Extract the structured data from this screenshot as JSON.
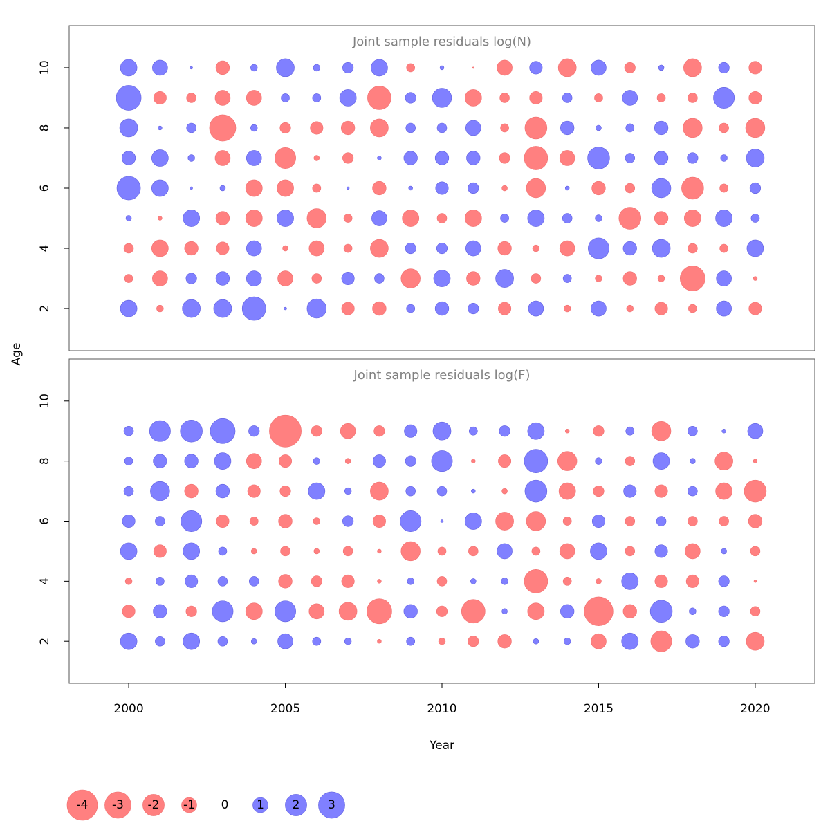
{
  "chart_data": [
    {
      "type": "bubble",
      "title": "Joint sample residuals log(N)",
      "x": [
        2000,
        2001,
        2002,
        2003,
        2004,
        2005,
        2006,
        2007,
        2008,
        2009,
        2010,
        2011,
        2012,
        2013,
        2014,
        2015,
        2016,
        2017,
        2018,
        2019,
        2020
      ],
      "ages": [
        10,
        9,
        8,
        7,
        6,
        5,
        4,
        3,
        2
      ],
      "values": [
        [
          1.2,
          1.0,
          0.03,
          -0.8,
          0.2,
          1.4,
          0.2,
          0.5,
          1.2,
          -0.3,
          0.07,
          -0.01,
          -1.0,
          0.7,
          -1.4,
          1.0,
          -0.5,
          0.13,
          -1.4,
          0.5,
          -0.7
        ],
        [
          2.7,
          -0.7,
          -0.4,
          -1.0,
          -1.0,
          0.3,
          0.3,
          1.2,
          -2.4,
          0.5,
          1.6,
          -1.2,
          -0.4,
          -0.7,
          0.4,
          -0.3,
          1.0,
          -0.3,
          -0.4,
          1.9,
          -0.7
        ],
        [
          1.4,
          0.07,
          0.4,
          -3.0,
          0.2,
          -0.5,
          -0.7,
          -0.8,
          -1.4,
          0.4,
          0.4,
          1.0,
          -0.3,
          -2.1,
          0.8,
          0.13,
          0.3,
          0.8,
          -1.6,
          -0.4,
          -1.6
        ],
        [
          0.8,
          1.2,
          0.2,
          -1.0,
          1.0,
          -1.9,
          -0.13,
          -0.5,
          0.07,
          0.8,
          0.8,
          0.8,
          -0.5,
          -2.4,
          -1.0,
          2.1,
          0.4,
          0.8,
          0.5,
          0.2,
          1.4
        ],
        [
          2.4,
          1.2,
          0.03,
          0.13,
          -1.2,
          -1.2,
          -0.3,
          0.03,
          -0.8,
          0.07,
          0.7,
          0.5,
          -0.13,
          -1.6,
          0.07,
          -0.8,
          -0.4,
          1.6,
          -2.1,
          -0.3,
          0.5
        ],
        [
          0.13,
          -0.07,
          1.2,
          -0.8,
          -1.2,
          1.2,
          -1.6,
          -0.3,
          1.0,
          -1.2,
          -0.4,
          -1.2,
          0.3,
          1.2,
          0.4,
          0.2,
          -2.1,
          -0.8,
          -1.2,
          1.2,
          0.3
        ],
        [
          -0.4,
          -1.2,
          -0.8,
          -0.7,
          1.0,
          -0.13,
          -1.0,
          -0.3,
          -1.4,
          0.5,
          0.5,
          1.0,
          -0.8,
          -0.2,
          -1.0,
          1.9,
          0.8,
          1.4,
          -0.4,
          -0.3,
          1.2
        ],
        [
          -0.3,
          -1.0,
          0.5,
          0.8,
          1.0,
          -1.0,
          -0.4,
          0.7,
          0.4,
          -1.6,
          1.2,
          -0.8,
          1.4,
          -0.4,
          0.3,
          -0.2,
          -0.8,
          -0.2,
          -2.7,
          1.0,
          -0.07
        ],
        [
          1.2,
          -0.2,
          1.4,
          1.4,
          2.4,
          0.03,
          1.6,
          -0.7,
          -0.8,
          0.3,
          0.8,
          0.5,
          -0.7,
          1.0,
          -0.2,
          1.0,
          -0.2,
          -0.7,
          -0.3,
          1.0,
          -0.7
        ]
      ],
      "xlim": [
        1998.1,
        2021.9
      ],
      "ylim": [
        0.6,
        11.4
      ],
      "yticks": [
        2,
        4,
        6,
        8,
        10
      ]
    },
    {
      "type": "bubble",
      "title": "Joint sample residuals log(F)",
      "x": [
        2000,
        2001,
        2002,
        2003,
        2004,
        2005,
        2006,
        2007,
        2008,
        2009,
        2010,
        2011,
        2012,
        2013,
        2014,
        2015,
        2016,
        2017,
        2018,
        2019,
        2020
      ],
      "ages": [
        9,
        8,
        7,
        6,
        5,
        4,
        3,
        2
      ],
      "values": [
        [
          0.4,
          1.9,
          2.1,
          2.7,
          0.5,
          -4.4,
          -0.5,
          -1.0,
          -0.5,
          0.7,
          1.4,
          0.3,
          0.5,
          1.2,
          -0.07,
          -0.5,
          0.3,
          -1.6,
          0.4,
          0.07,
          1.0
        ],
        [
          0.3,
          0.8,
          0.8,
          1.2,
          -1.0,
          -0.7,
          0.2,
          -0.13,
          0.7,
          0.5,
          1.9,
          -0.07,
          -0.7,
          2.4,
          -1.6,
          0.2,
          -0.4,
          1.2,
          0.13,
          -1.4,
          -0.07
        ],
        [
          0.4,
          1.6,
          -0.8,
          0.8,
          -0.7,
          -0.5,
          1.2,
          0.2,
          -1.4,
          0.4,
          0.4,
          0.07,
          -0.13,
          2.1,
          -1.2,
          -0.5,
          0.7,
          -0.7,
          0.4,
          -1.2,
          -2.1
        ],
        [
          0.7,
          0.4,
          1.9,
          -0.7,
          -0.3,
          -0.8,
          -0.2,
          0.5,
          -0.7,
          1.9,
          0.03,
          1.2,
          -1.4,
          -1.6,
          -0.3,
          0.7,
          -0.4,
          0.4,
          -0.4,
          -0.4,
          -0.8
        ],
        [
          1.2,
          -0.7,
          1.2,
          0.3,
          -0.13,
          -0.4,
          -0.13,
          -0.4,
          -0.07,
          -1.6,
          -0.3,
          -0.4,
          1.0,
          -0.3,
          -1.0,
          1.2,
          -0.4,
          0.7,
          -1.0,
          0.13,
          -0.4
        ],
        [
          -0.2,
          0.3,
          0.7,
          0.4,
          0.4,
          -0.8,
          -0.5,
          -0.7,
          -0.07,
          0.2,
          -0.4,
          0.13,
          0.2,
          -2.4,
          -0.3,
          -0.13,
          1.2,
          -0.7,
          -0.7,
          0.5,
          -0.03
        ],
        [
          -0.7,
          0.8,
          -0.5,
          1.9,
          -1.2,
          1.9,
          -1.0,
          -1.4,
          -2.7,
          0.8,
          -0.5,
          -2.4,
          0.13,
          -1.2,
          0.8,
          -3.6,
          -0.8,
          2.1,
          0.2,
          0.5,
          -0.4
        ],
        [
          1.2,
          0.4,
          1.2,
          0.4,
          0.13,
          1.0,
          0.3,
          0.2,
          -0.07,
          0.3,
          -0.2,
          -0.5,
          -0.8,
          0.13,
          0.2,
          -1.0,
          1.2,
          -1.9,
          0.8,
          0.5,
          -1.4
        ]
      ],
      "xlim": [
        1998.1,
        2021.9
      ],
      "ylim": [
        0.6,
        11.4
      ],
      "yticks": [
        2,
        4,
        6,
        8,
        10
      ],
      "xticks": [
        2000,
        2005,
        2010,
        2015,
        2020
      ]
    }
  ],
  "xlabel": "Year",
  "ylabel": "Age",
  "colors": {
    "negative": "#ff8080",
    "positive": "#8080ff",
    "negative_text": "#8b0000",
    "positive_text": "#00008b"
  },
  "legend": [
    -4,
    -3,
    -2,
    -1,
    0,
    1,
    2,
    3
  ]
}
